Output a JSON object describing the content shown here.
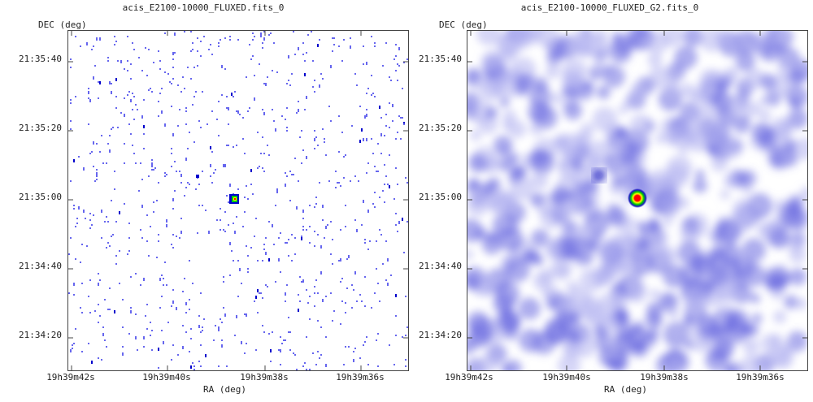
{
  "chart_data": [
    {
      "type": "heatmap",
      "title": "acis_E2100-10000_FLUXED.fits_0",
      "xlabel": "RA (deg)",
      "ylabel": "DEC (deg)",
      "xticks": [
        "19h39m42s",
        "19h39m40s",
        "19h39m38s",
        "19h39m36s"
      ],
      "yticks": [
        "21:35:40",
        "21:35:20",
        "21:35:00",
        "21:34:40",
        "21:34:20"
      ],
      "colormap": [
        "#ffffff",
        "#6666ee",
        "#0000cc",
        "#00cc00",
        "#ffff00",
        "#ff0000"
      ],
      "sources": [
        {
          "ra": "19h39m38.6s",
          "dec": "21:35:00",
          "peak": 1.0
        },
        {
          "ra": "19h39m39.8s",
          "dec": "21:35:06",
          "peak": 0.4
        }
      ]
    },
    {
      "type": "heatmap",
      "title": "acis_E2100-10000_FLUXED_G2.fits_0",
      "xlabel": "RA (deg)",
      "ylabel": "DEC (deg)",
      "xticks": [
        "19h39m42s",
        "19h39m40s",
        "19h39m38s",
        "19h39m36s"
      ],
      "yticks": [
        "21:35:40",
        "21:35:20",
        "21:35:00",
        "21:34:40",
        "21:34:20"
      ],
      "colormap": [
        "#ffffff",
        "#b4b4f0",
        "#6a6ae0",
        "#1818c0",
        "#00cc00",
        "#ffff00",
        "#ff0000"
      ],
      "sources": [
        {
          "ra": "19h39m38.6s",
          "dec": "21:35:00",
          "peak": 1.0
        },
        {
          "ra": "19h39m39.9s",
          "dec": "21:35:06",
          "peak": 0.45
        }
      ]
    }
  ]
}
